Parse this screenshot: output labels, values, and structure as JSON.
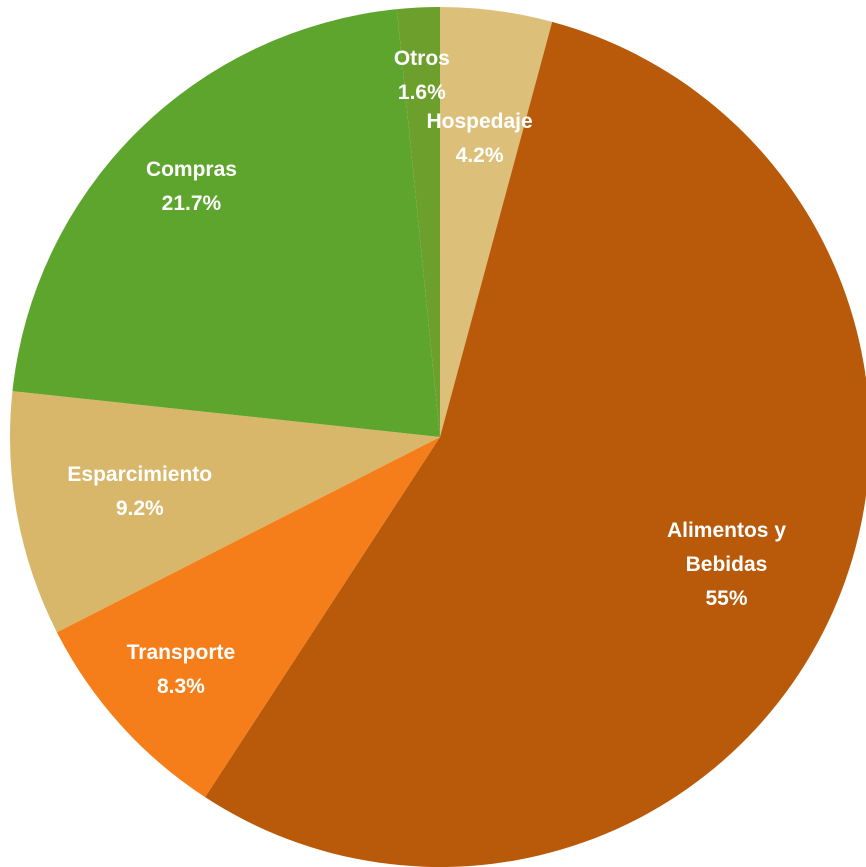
{
  "chart_data": {
    "type": "pie",
    "categories": [
      "Hospedaje",
      "Alimentos y Bebidas",
      "Transporte",
      "Esparcimiento",
      "Compras",
      "Otros"
    ],
    "values": [
      4.2,
      55,
      8.3,
      9.2,
      21.7,
      1.6
    ],
    "value_labels": [
      "4.2%",
      "55%",
      "8.3%",
      "9.2%",
      "21.7%",
      "1.6%"
    ],
    "colors": [
      "#dcc07a",
      "#b85a0a",
      "#f57e1a",
      "#d8b76a",
      "#5ea52e",
      "#6c9f2c"
    ]
  }
}
